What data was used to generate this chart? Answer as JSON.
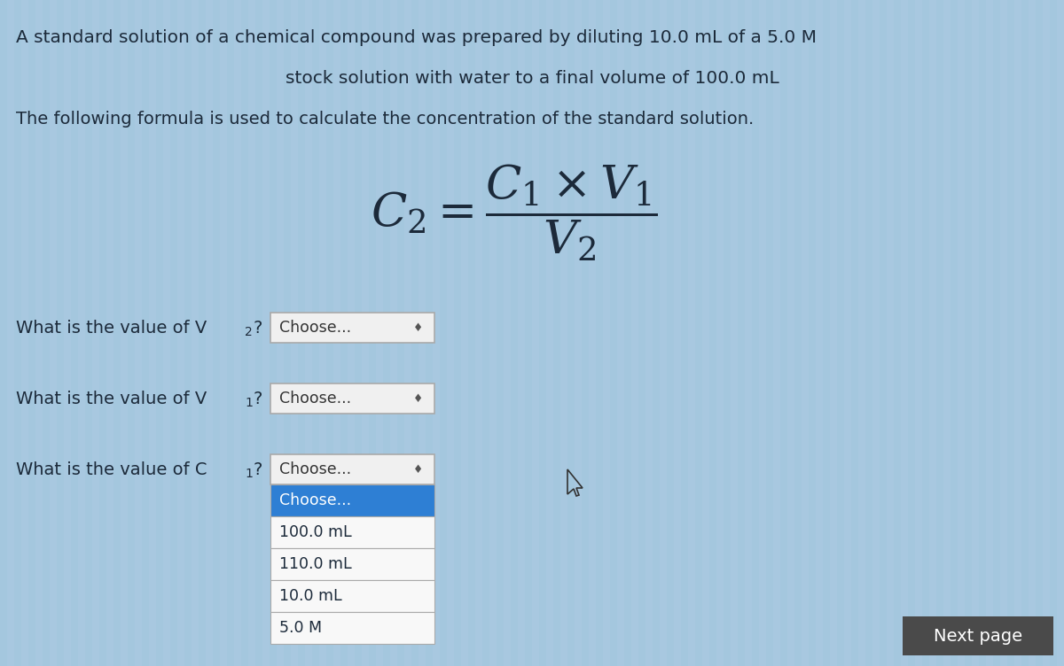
{
  "background_color": "#a8c8e0",
  "stripe_color1": "#9bbdd6",
  "stripe_color2": "#b8d4ea",
  "title_line1": "A standard solution of a chemical compound was prepared by diluting 10.0 mL of a 5.0 M",
  "title_line2": "stock solution with water to a final volume of 100.0 mL",
  "subtitle": "The following formula is used to calculate the concentration of the standard solution.",
  "questions": [
    {
      "text": "What is the value of V",
      "sub": "2",
      "suffix": "?"
    },
    {
      "text": "What is the value of V",
      "sub": "1",
      "suffix": "?"
    },
    {
      "text": "What is the value of C",
      "sub": "1",
      "suffix": "?"
    }
  ],
  "dropdown_text": "Choose...",
  "dropdown_options": [
    "Choose...",
    "100.0 mL",
    "110.0 mL",
    "10.0 mL",
    "5.0 M"
  ],
  "dropdown_selected_color": "#2e7fd4",
  "dropdown_bg_color": "#f0f0f0",
  "dropdown_item_bg": "#f8f8f8",
  "next_page_text": "Next page",
  "next_page_bg": "#4a4a4a",
  "text_color": "#1c2a3a",
  "dropdown_border_color": "#aaaaaa",
  "formula_color": "#1c2a3a"
}
